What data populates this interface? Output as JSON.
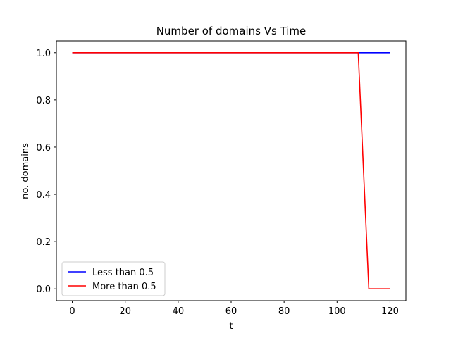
{
  "chart_data": {
    "type": "line",
    "title": "Number of domains Vs Time",
    "xlabel": "t",
    "ylabel": "no. domains",
    "xlim": [
      -6,
      126
    ],
    "ylim": [
      -0.05,
      1.05
    ],
    "xticks": [
      0,
      20,
      40,
      60,
      80,
      100,
      120
    ],
    "yticks": [
      0.0,
      0.2,
      0.4,
      0.6,
      0.8,
      1.0
    ],
    "xtick_labels": [
      "0",
      "20",
      "40",
      "60",
      "80",
      "100",
      "120"
    ],
    "ytick_labels": [
      "0.0",
      "0.2",
      "0.4",
      "0.6",
      "0.8",
      "1.0"
    ],
    "legend_position": "lower-left",
    "grid": false,
    "series": [
      {
        "name": "Less than 0.5",
        "color": "#0000ff",
        "x": [
          0,
          120
        ],
        "y": [
          1,
          1
        ]
      },
      {
        "name": "More than 0.5",
        "color": "#ff0000",
        "x": [
          0,
          108,
          112,
          120
        ],
        "y": [
          1,
          1,
          0,
          0
        ]
      }
    ]
  }
}
